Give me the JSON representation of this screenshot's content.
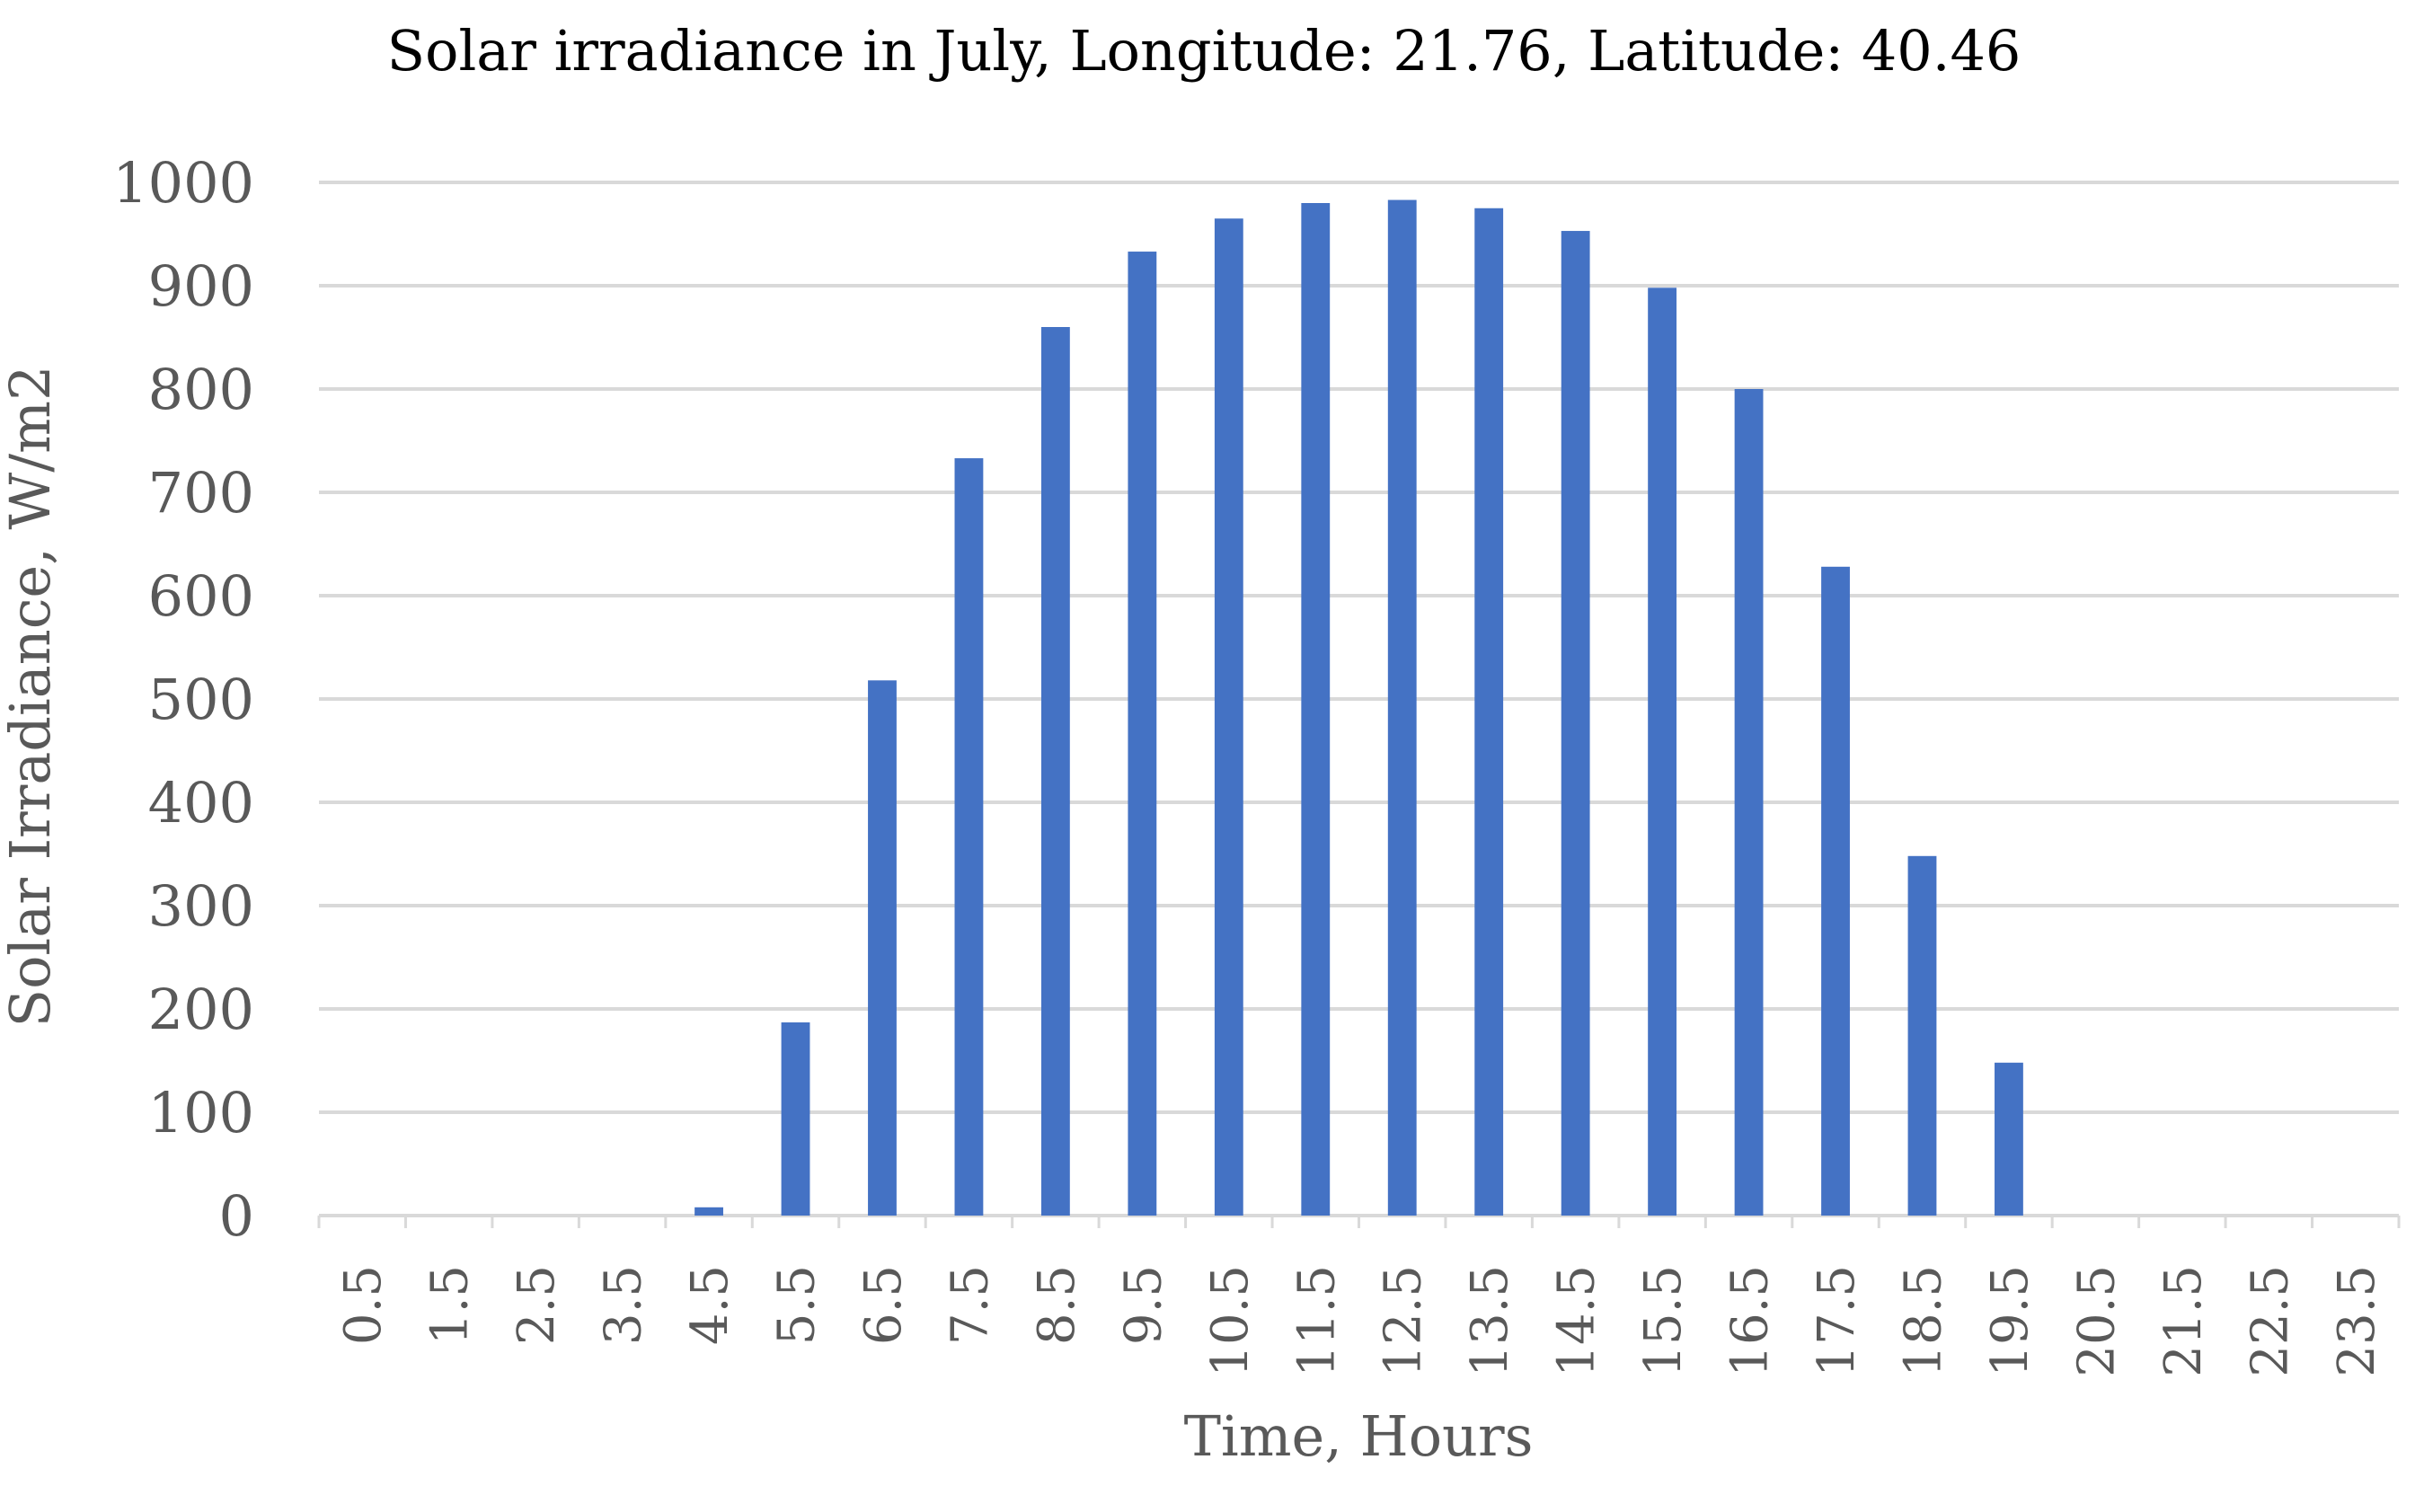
{
  "chart_data": {
    "type": "bar",
    "title": "Solar irradiance in July, Longitude: 21.76, Latitude: 40.46",
    "xlabel": "Time, Hours",
    "ylabel": "Solar Irradiance, W/m2",
    "ylim": [
      0,
      1000
    ],
    "yticks": [
      "0",
      "100",
      "200",
      "300",
      "400",
      "500",
      "600",
      "700",
      "800",
      "900",
      "1000"
    ],
    "grid": "horizontal",
    "legend": "none",
    "categories": [
      "0.5",
      "1.5",
      "2.5",
      "3.5",
      "4.5",
      "5.5",
      "6.5",
      "7.5",
      "8.5",
      "9.5",
      "10.5",
      "11.5",
      "12.5",
      "13.5",
      "14.5",
      "15.5",
      "16.5",
      "17.5",
      "18.5",
      "19.5",
      "20.5",
      "21.5",
      "22.5",
      "23.5"
    ],
    "values": [
      0,
      0,
      0,
      0,
      8,
      187,
      518,
      733,
      860,
      933,
      965,
      980,
      983,
      975,
      953,
      898,
      800,
      628,
      348,
      148,
      0,
      0,
      0,
      0
    ],
    "colors": {
      "bar": "#4472c4",
      "grid": "#d9d9d9",
      "tick_text": "#595959",
      "title_text": "#000000"
    }
  }
}
